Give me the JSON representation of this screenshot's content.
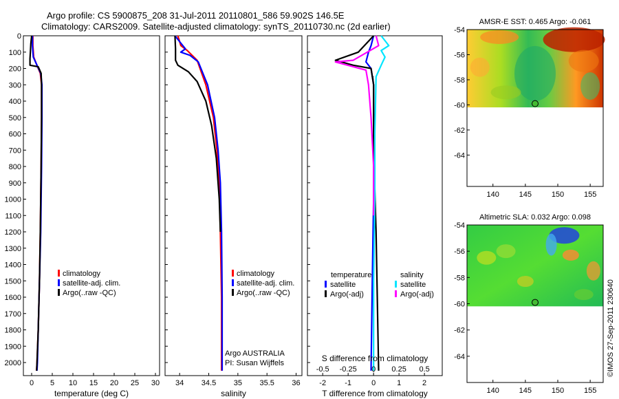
{
  "header": {
    "title_line1": "Argo profile: CS 5900875_208 31-Jul-2011 20110801_586 59.902S 146.5E",
    "title_line2": "Climatology: CARS2009. Satellite-adjusted climatology: synTS_20110730.nc (2d earlier)"
  },
  "credit": "©IMOS 27-Sep-2011 230640",
  "colors": {
    "climatology": "#ff0000",
    "satellite": "#0000ff",
    "argo": "#000000",
    "salinity_satellite": "#00e5ff",
    "salinity_argo": "#ff00ff"
  },
  "chart_data": [
    {
      "type": "line",
      "id": "temperature",
      "xlabel": "temperature (deg C)",
      "xlim": [
        -2,
        31
      ],
      "ylim": [
        2080,
        0
      ],
      "x_ticks": [
        "0",
        "5",
        "10",
        "15",
        "20",
        "25",
        "30"
      ],
      "x_tick_values": [
        0,
        5,
        10,
        15,
        20,
        25,
        30
      ],
      "y_ticks": [
        "0",
        "100",
        "200",
        "300",
        "400",
        "500",
        "600",
        "700",
        "800",
        "900",
        "1000",
        "1100",
        "1200",
        "1300",
        "1400",
        "1500",
        "1600",
        "1700",
        "1800",
        "1900",
        "2000"
      ],
      "y_tick_values": [
        0,
        100,
        200,
        300,
        400,
        500,
        600,
        700,
        800,
        900,
        1000,
        1100,
        1200,
        1300,
        1400,
        1500,
        1600,
        1700,
        1800,
        1900,
        2000
      ],
      "legend": [
        "climatology",
        "satellite-adj. clim.",
        "Argo(..raw -QC)"
      ],
      "series": [
        {
          "name": "climatology",
          "color": "#ff0000",
          "points": [
            [
              0.3,
              0
            ],
            [
              0.3,
              60
            ],
            [
              0.5,
              130
            ],
            [
              1.2,
              175
            ],
            [
              2.1,
              230
            ],
            [
              2.4,
              300
            ],
            [
              2.4,
              500
            ],
            [
              2.3,
              800
            ],
            [
              2.1,
              1200
            ],
            [
              1.9,
              1500
            ],
            [
              1.6,
              1800
            ],
            [
              1.3,
              2000
            ],
            [
              1.2,
              2050
            ]
          ]
        },
        {
          "name": "satellite-adj. clim.",
          "color": "#0000ff",
          "points": [
            [
              0.2,
              0
            ],
            [
              0.2,
              60
            ],
            [
              0.4,
              130
            ],
            [
              1.2,
              175
            ],
            [
              2.2,
              230
            ],
            [
              2.5,
              300
            ],
            [
              2.5,
              500
            ],
            [
              2.4,
              800
            ],
            [
              2.2,
              1200
            ],
            [
              1.9,
              1500
            ],
            [
              1.6,
              1800
            ],
            [
              1.4,
              2000
            ],
            [
              1.3,
              2050
            ]
          ]
        },
        {
          "name": "Argo(..raw -QC)",
          "color": "#000000",
          "points": [
            [
              0.0,
              0
            ],
            [
              -0.2,
              50
            ],
            [
              -0.3,
              100
            ],
            [
              -0.4,
              140
            ],
            [
              -0.4,
              180
            ],
            [
              1.6,
              190
            ],
            [
              2.3,
              230
            ],
            [
              2.4,
              300
            ],
            [
              2.4,
              500
            ],
            [
              2.3,
              800
            ],
            [
              2.1,
              1200
            ],
            [
              1.9,
              1500
            ],
            [
              1.6,
              1800
            ],
            [
              1.3,
              2000
            ],
            [
              1.2,
              2050
            ]
          ]
        }
      ]
    },
    {
      "type": "line",
      "id": "salinity",
      "xlabel": "salinity",
      "xlim": [
        33.75,
        36.1
      ],
      "ylim": [
        2080,
        0
      ],
      "x_ticks": [
        "34",
        "34.5",
        "35",
        "35.5",
        "36"
      ],
      "x_tick_values": [
        34,
        34.5,
        35,
        35.5,
        36
      ],
      "legend": [
        "climatology",
        "satellite-adj. clim.",
        "Argo(..raw -QC)"
      ],
      "annotation": [
        "Argo AUSTRALIA",
        "PI: Susan Wijffels"
      ],
      "series": [
        {
          "name": "climatology",
          "color": "#ff0000",
          "points": [
            [
              33.97,
              0
            ],
            [
              34.02,
              60
            ],
            [
              34.13,
              90
            ],
            [
              34.3,
              150
            ],
            [
              34.45,
              300
            ],
            [
              34.58,
              500
            ],
            [
              34.64,
              700
            ],
            [
              34.68,
              900
            ],
            [
              34.7,
              1200
            ],
            [
              34.72,
              1600
            ],
            [
              34.72,
              2050
            ]
          ]
        },
        {
          "name": "satellite-adj. clim.",
          "color": "#0000ff",
          "points": [
            [
              33.92,
              0
            ],
            [
              34.1,
              80
            ],
            [
              34.02,
              100
            ],
            [
              34.18,
              120
            ],
            [
              34.32,
              160
            ],
            [
              34.48,
              300
            ],
            [
              34.6,
              500
            ],
            [
              34.66,
              700
            ],
            [
              34.7,
              900
            ],
            [
              34.72,
              1200
            ],
            [
              34.73,
              1600
            ],
            [
              34.73,
              2050
            ]
          ]
        },
        {
          "name": "Argo(..raw -QC)",
          "color": "#000000",
          "points": [
            [
              33.92,
              0
            ],
            [
              33.93,
              80
            ],
            [
              33.93,
              150
            ],
            [
              33.97,
              180
            ],
            [
              34.15,
              220
            ],
            [
              34.3,
              280
            ],
            [
              34.45,
              400
            ],
            [
              34.55,
              550
            ],
            [
              34.63,
              750
            ],
            [
              34.68,
              1000
            ],
            [
              34.7,
              1200
            ]
          ]
        }
      ]
    },
    {
      "type": "line",
      "id": "difference",
      "xlabel": "T difference from climatology",
      "xlabel_top": "S difference from climatology",
      "xlim": [
        -2.6,
        2.7
      ],
      "ylim": [
        2080,
        0
      ],
      "x_ticks": [
        "-2",
        "-1",
        "0",
        "1",
        "2"
      ],
      "x_tick_values": [
        -2,
        -1,
        0,
        1,
        2
      ],
      "s_ticks": [
        "-0.5",
        "-0.25",
        "0",
        "0.25",
        "0.5"
      ],
      "s_tick_values": [
        -0.5,
        -0.25,
        0,
        0.25,
        0.5
      ],
      "legend_left_title": "temperature",
      "legend_right_title": "salinity",
      "legend_left": [
        "satellite",
        "Argo(-adj)"
      ],
      "legend_right": [
        "satellite",
        "Argo(-adj)"
      ],
      "series": [
        {
          "name": "T satellite",
          "color": "#0000ff",
          "points": [
            [
              0,
              0
            ],
            [
              -0.1,
              60
            ],
            [
              -0.2,
              100
            ],
            [
              -0.3,
              160
            ],
            [
              -0.1,
              200
            ],
            [
              0,
              300
            ],
            [
              0,
              600
            ],
            [
              0,
              1000
            ],
            [
              -0.05,
              1500
            ],
            [
              -0.1,
              2050
            ]
          ]
        },
        {
          "name": "T Argo(-adj)",
          "color": "#000000",
          "points": [
            [
              0,
              0
            ],
            [
              -0.3,
              50
            ],
            [
              -0.6,
              100
            ],
            [
              -1.5,
              150
            ],
            [
              -0.8,
              180
            ],
            [
              -0.1,
              200
            ],
            [
              0,
              300
            ],
            [
              0,
              700
            ],
            [
              0.1,
              1200
            ],
            [
              0.2,
              2050
            ]
          ]
        },
        {
          "name": "S satellite",
          "color": "#00e5ff",
          "points": [
            [
              0.3,
              0
            ],
            [
              0.5,
              40
            ],
            [
              0.6,
              60
            ],
            [
              0.3,
              90
            ],
            [
              0.45,
              130
            ],
            [
              0.3,
              180
            ],
            [
              0.1,
              250
            ],
            [
              0.05,
              600
            ],
            [
              0.05,
              1000
            ],
            [
              0,
              1500
            ],
            [
              0,
              2050
            ]
          ]
        },
        {
          "name": "S Argo(-adj)",
          "color": "#ff00ff",
          "points": [
            [
              0.1,
              0
            ],
            [
              0.2,
              60
            ],
            [
              -0.8,
              150
            ],
            [
              -1.5,
              160
            ],
            [
              -0.3,
              210
            ],
            [
              -0.2,
              300
            ],
            [
              -0.1,
              500
            ],
            [
              0,
              800
            ],
            [
              0,
              1100
            ]
          ]
        }
      ]
    },
    {
      "type": "heatmap",
      "id": "sst",
      "title": "AMSR-E SST: 0.465 Argo: -0.061",
      "xlim": [
        136,
        157
      ],
      "ylim": [
        -66.5,
        -54
      ],
      "x_ticks": [
        "140",
        "145",
        "150",
        "155"
      ],
      "x_tick_values": [
        140,
        145,
        150,
        155
      ],
      "y_ticks": [
        "-54",
        "-56",
        "-58",
        "-60",
        "-62",
        "-64"
      ],
      "y_tick_values": [
        -54,
        -56,
        -58,
        -60,
        -62,
        -64
      ],
      "data_extent_lat": [
        -60.2,
        -54
      ],
      "marker": [
        146.5,
        -59.9
      ]
    },
    {
      "type": "heatmap",
      "id": "sla",
      "title": "Altimetric SLA: 0.032 Argo: 0.098",
      "xlim": [
        136,
        157
      ],
      "ylim": [
        -66,
        -54
      ],
      "x_ticks": [
        "140",
        "145",
        "150",
        "155"
      ],
      "x_tick_values": [
        140,
        145,
        150,
        155
      ],
      "y_ticks": [
        "-54",
        "-56",
        "-58",
        "-60",
        "-62",
        "-64"
      ],
      "y_tick_values": [
        -54,
        -56,
        -58,
        -60,
        -62,
        -64
      ],
      "data_extent_lat": [
        -60.2,
        -54
      ],
      "marker": [
        146.5,
        -59.9
      ]
    }
  ]
}
